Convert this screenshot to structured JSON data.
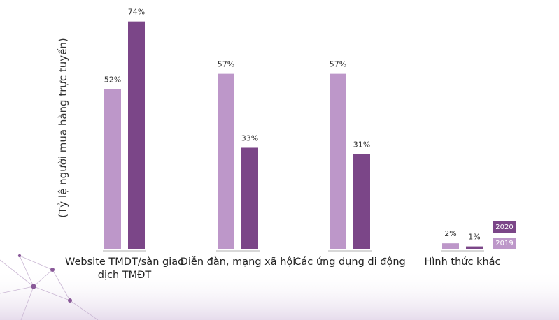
{
  "chart_data": {
    "type": "bar",
    "title": "",
    "xlabel": "",
    "ylabel": "(Tỷ lệ người mua hàng trực tuyến)",
    "ylim": [
      0,
      80
    ],
    "categories": [
      "Website TMĐT/sàn giao dịch TMĐT",
      "Diễn đàn, mạng xã hội",
      "Các ứng dụng di động",
      "Hình thức khác"
    ],
    "series": [
      {
        "name": "2019",
        "color": "#bd97c9",
        "values": [
          52,
          57,
          57,
          2
        ],
        "labels": [
          "52%",
          "57%",
          "57%",
          "2%"
        ]
      },
      {
        "name": "2020",
        "color": "#7b4688",
        "values": [
          74,
          33,
          31,
          1
        ],
        "labels": [
          "74%",
          "33%",
          "31%",
          "1%"
        ]
      }
    ],
    "legend": {
      "placement": "bottom-right",
      "order": [
        "2020",
        "2019"
      ]
    },
    "grid": false
  }
}
